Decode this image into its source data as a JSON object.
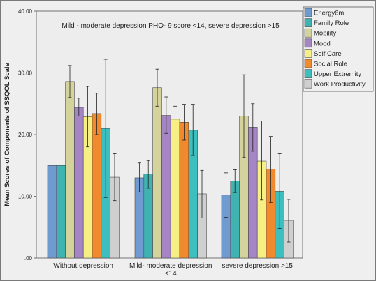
{
  "chart_data": {
    "type": "bar",
    "title": "Mild - moderate depression PHQ- 9 score <14, severe depression >15",
    "xlabel": "",
    "ylabel": "Mean Scores of Components of SSQOL Scale",
    "ylim": [
      0,
      40
    ],
    "yticks": [
      0,
      10,
      20,
      30,
      40
    ],
    "ytick_labels": [
      ".00",
      "10.00",
      "20.00",
      "30.00",
      "40.00"
    ],
    "grid": false,
    "legend_position": "top-right",
    "categories": [
      "Without depression",
      "Mild- moderate depression <14",
      "severe depression >15"
    ],
    "category_lines": [
      [
        "Without depression"
      ],
      [
        "Mild- moderate depression",
        "<14"
      ],
      [
        "severe depression >15"
      ]
    ],
    "series": [
      {
        "name": "Energy6m",
        "color": "#6f9bd1",
        "values": [
          15.0,
          13.0,
          10.2
        ],
        "error_low": [
          15.0,
          10.7,
          6.6
        ],
        "error_high": [
          15.0,
          15.4,
          13.8
        ]
      },
      {
        "name": "Family Role",
        "color": "#3fb2b2",
        "values": [
          15.0,
          13.6,
          12.5
        ],
        "error_low": [
          15.0,
          11.3,
          10.6
        ],
        "error_high": [
          15.0,
          15.8,
          14.3
        ]
      },
      {
        "name": "Mobility",
        "color": "#d5d39c",
        "values": [
          28.6,
          27.6,
          23.0
        ],
        "error_low": [
          26.0,
          24.6,
          16.3
        ],
        "error_high": [
          31.2,
          30.6,
          29.7
        ]
      },
      {
        "name": "Mood",
        "color": "#a585c3",
        "values": [
          24.4,
          23.1,
          21.2
        ],
        "error_low": [
          23.0,
          20.2,
          17.3
        ],
        "error_high": [
          25.9,
          26.1,
          25.0
        ]
      },
      {
        "name": "Self Care",
        "color": "#f5ef84",
        "values": [
          22.9,
          22.5,
          15.7
        ],
        "error_low": [
          18.0,
          20.4,
          9.4
        ],
        "error_high": [
          27.8,
          24.6,
          22.2
        ]
      },
      {
        "name": "Social Role",
        "color": "#f18a2c",
        "values": [
          23.4,
          22.0,
          14.4
        ],
        "error_low": [
          20.0,
          19.1,
          9.0
        ],
        "error_high": [
          26.7,
          24.9,
          19.7
        ]
      },
      {
        "name": "Upper Extremity",
        "color": "#3dbfbf",
        "values": [
          21.0,
          20.7,
          10.8
        ],
        "error_low": [
          9.8,
          16.6,
          4.8
        ],
        "error_high": [
          32.2,
          24.9,
          16.9
        ]
      },
      {
        "name": "Work Productivity",
        "color": "#cfcfcf",
        "values": [
          13.1,
          10.4,
          6.1
        ],
        "error_low": [
          9.3,
          6.5,
          2.6
        ],
        "error_high": [
          16.9,
          14.2,
          9.5
        ]
      }
    ]
  }
}
